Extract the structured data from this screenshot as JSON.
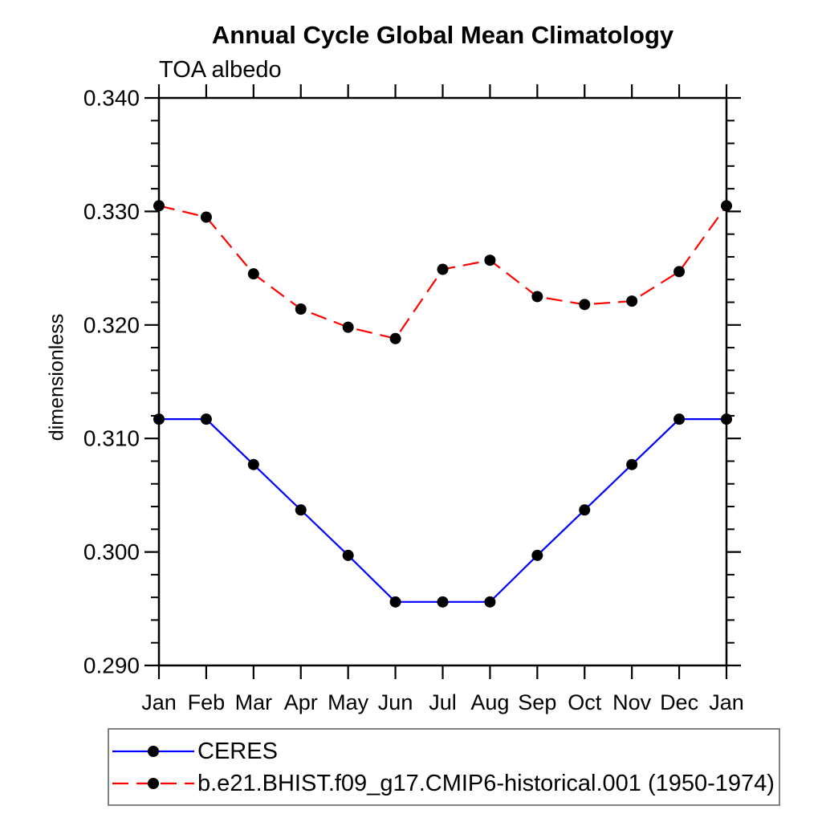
{
  "chart_data": {
    "type": "line",
    "title": "Annual Cycle Global Mean Climatology",
    "subtitle": "TOA albedo",
    "xlabel": "",
    "ylabel": "dimensionless",
    "categories": [
      "Jan",
      "Feb",
      "Mar",
      "Apr",
      "May",
      "Jun",
      "Jul",
      "Aug",
      "Sep",
      "Oct",
      "Nov",
      "Dec",
      "Jan"
    ],
    "series": [
      {
        "name": "CERES",
        "line_style": "solid",
        "line_color": "#0000ff",
        "marker": "filled-circle",
        "marker_color": "#000000",
        "values": [
          0.3117,
          0.3117,
          0.3077,
          0.3037,
          0.2997,
          0.2956,
          0.2956,
          0.2956,
          0.2997,
          0.3037,
          0.3077,
          0.3117,
          0.3117
        ]
      },
      {
        "name": "b.e21.BHIST.f09_g17.CMIP6-historical.001 (1950-1974)",
        "line_style": "dashed",
        "line_color": "#ff0000",
        "marker": "filled-circle",
        "marker_color": "#000000",
        "values": [
          0.3305,
          0.3295,
          0.3245,
          0.3214,
          0.3198,
          0.3188,
          0.3249,
          0.3257,
          0.3225,
          0.3218,
          0.3221,
          0.3247,
          0.3305
        ]
      }
    ],
    "ylim": [
      0.29,
      0.34
    ],
    "ytick_interval": 0.01,
    "yminor_interval": 0.002,
    "ytick_labels": [
      "0.340",
      "0.330",
      "0.320",
      "0.310",
      "0.300",
      "0.290"
    ],
    "grid": false,
    "legend_position": "bottom-left",
    "colors": {
      "axis": "#000000",
      "legend_border": "#808080",
      "background": "#ffffff"
    }
  }
}
